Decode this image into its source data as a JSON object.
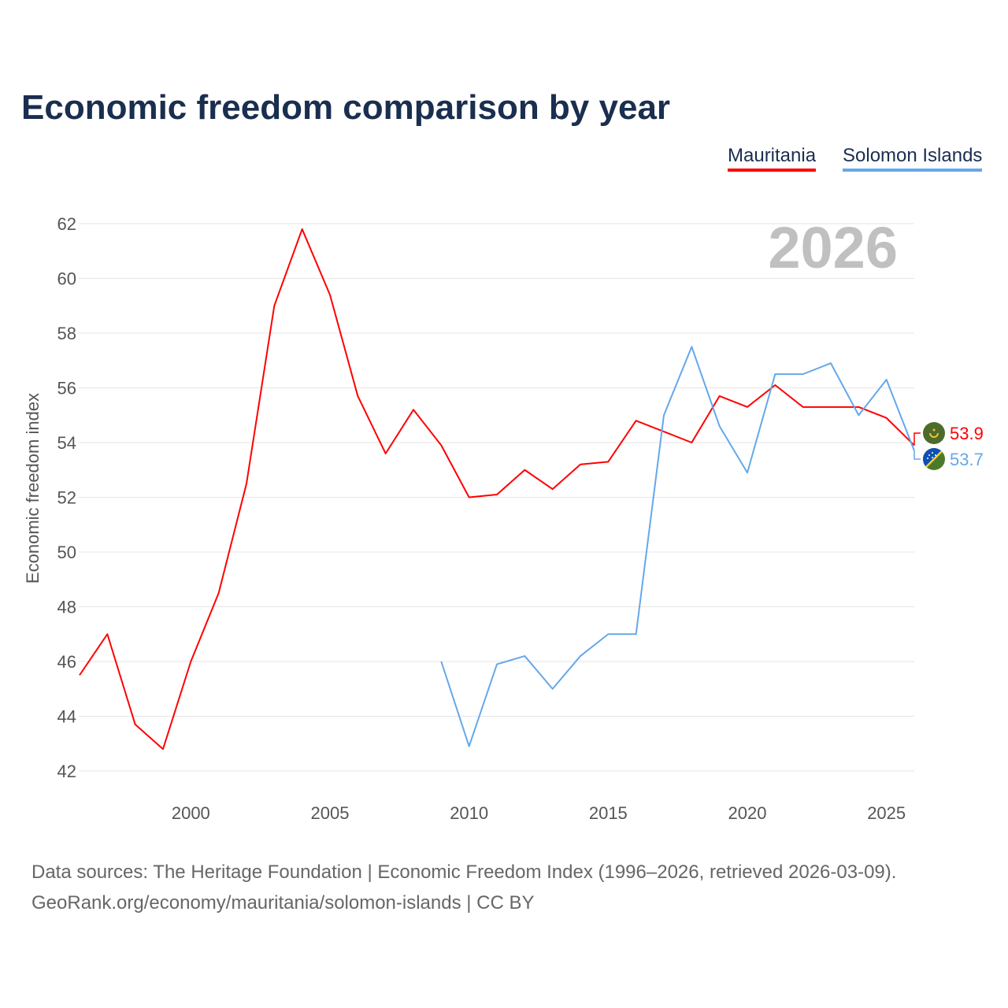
{
  "title": "Economic freedom comparison by year",
  "footer": {
    "line1": "Data sources: The Heritage Foundation | Economic Freedom Index (1996–2026, retrieved 2026-03-09).",
    "line2": "GeoRank.org/economy/mauritania/solomon-islands | CC BY"
  },
  "chart_data": {
    "type": "line",
    "title": "Economic freedom comparison by year",
    "ylabel": "Economic freedom index",
    "xlabel": "",
    "current_year": "2026",
    "xlim": [
      1996,
      2026
    ],
    "ylim": [
      42,
      62
    ],
    "xticks": [
      2000,
      2005,
      2010,
      2015,
      2020,
      2025
    ],
    "yticks": [
      42,
      44,
      46,
      48,
      50,
      52,
      54,
      56,
      58,
      60,
      62
    ],
    "grid": true,
    "legend_position": "top-right",
    "series": [
      {
        "name": "Mauritania",
        "color": "#ff0000",
        "end_label": "53.9",
        "flag": "mauritania-flag",
        "x": [
          1996,
          1997,
          1998,
          1999,
          2000,
          2001,
          2002,
          2003,
          2004,
          2005,
          2006,
          2007,
          2008,
          2009,
          2010,
          2011,
          2012,
          2013,
          2014,
          2015,
          2016,
          2017,
          2018,
          2019,
          2020,
          2021,
          2022,
          2023,
          2024,
          2025,
          2026
        ],
        "values": [
          45.5,
          47.0,
          43.7,
          42.8,
          46.0,
          48.5,
          52.5,
          59.0,
          61.8,
          59.4,
          55.7,
          53.6,
          55.2,
          53.9,
          52.0,
          52.1,
          53.0,
          52.3,
          53.2,
          53.3,
          54.8,
          54.4,
          54.0,
          55.7,
          55.3,
          56.1,
          55.3,
          55.3,
          55.3,
          54.9,
          53.9
        ]
      },
      {
        "name": "Solomon Islands",
        "color": "#64a8ea",
        "end_label": "53.7",
        "flag": "solomon-islands-flag",
        "x": [
          2009,
          2010,
          2011,
          2012,
          2013,
          2014,
          2015,
          2016,
          2017,
          2018,
          2019,
          2020,
          2021,
          2022,
          2023,
          2024,
          2025,
          2026
        ],
        "values": [
          46.0,
          42.9,
          45.9,
          46.2,
          45.0,
          46.2,
          47.0,
          47.0,
          55.0,
          57.5,
          54.6,
          52.9,
          56.5,
          56.5,
          56.9,
          55.0,
          56.3,
          53.7
        ]
      }
    ]
  }
}
